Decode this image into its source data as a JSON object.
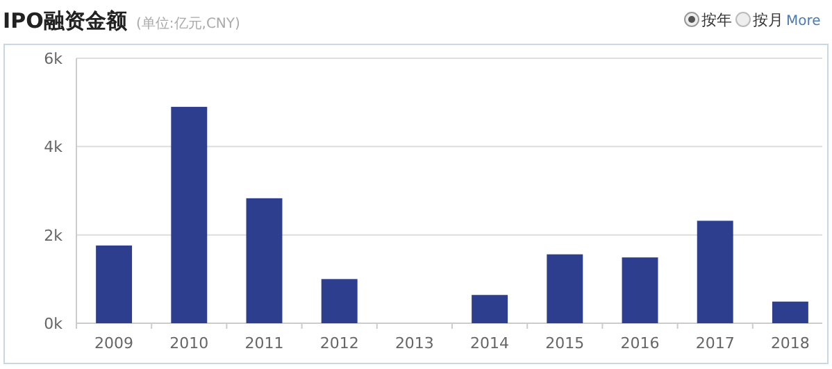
{
  "chart_data": {
    "type": "bar",
    "title": "IPO融资金额",
    "subtitle": "(单位:亿元,CNY)",
    "annotations": [
      "按年",
      "按月",
      "More"
    ],
    "categories": [
      "2009",
      "2010",
      "2011",
      "2012",
      "2013",
      "2014",
      "2015",
      "2016",
      "2017",
      "2018"
    ],
    "values": [
      1760,
      4900,
      2830,
      1000,
      0,
      640,
      1560,
      1490,
      2320,
      490
    ],
    "color": "#2e3e8e",
    "ylim": [
      0,
      6000
    ],
    "yticks": [
      {
        "value": 0,
        "label": "0k"
      },
      {
        "value": 2000,
        "label": "2k"
      },
      {
        "value": 4000,
        "label": "4k"
      },
      {
        "value": 6000,
        "label": "6k"
      }
    ],
    "grid": "y"
  }
}
